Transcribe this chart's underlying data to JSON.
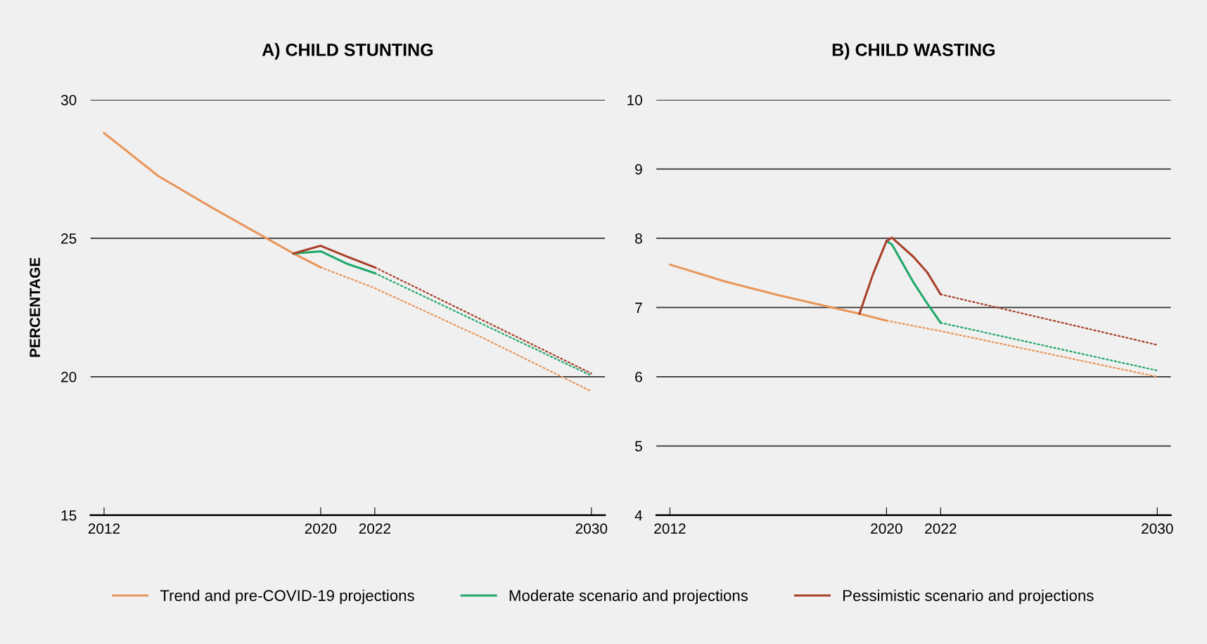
{
  "chart_data": [
    {
      "type": "line",
      "title": "A) CHILD STUNTING",
      "ylabel": "PERCENTAGE",
      "xlim": [
        2011.5,
        2030.5
      ],
      "xticks": [
        2012,
        2020,
        2022,
        2030
      ],
      "ylim": [
        15,
        30
      ],
      "yticks": [
        15,
        20,
        25,
        30
      ],
      "grid": "y",
      "legend": "bottom",
      "series": [
        {
          "name": "Trend and pre-COVID-19 projections",
          "color": "#e8965a",
          "line_style": "solid",
          "x": [
            2012,
            2014,
            2016,
            2018,
            2019,
            2020
          ],
          "values": [
            28.8,
            27.25,
            26.1,
            25.0,
            24.45,
            23.95
          ]
        },
        {
          "color": "#e8965a",
          "line_style": "dotted",
          "x": [
            2020,
            2022,
            2026,
            2030
          ],
          "values": [
            23.95,
            23.2,
            21.4,
            19.47
          ]
        },
        {
          "name": "Moderate scenario and projections",
          "color": "#1fa86a",
          "line_style": "solid",
          "x": [
            2019,
            2020,
            2021,
            2022
          ],
          "values": [
            24.45,
            24.53,
            24.07,
            23.74
          ]
        },
        {
          "color": "#1fa86a",
          "line_style": "dotted",
          "x": [
            2022,
            2030
          ],
          "values": [
            23.74,
            20.04
          ]
        },
        {
          "name": "Pessimistic scenario and projections",
          "color": "#a8402a",
          "line_style": "solid",
          "x": [
            2019,
            2020,
            2021,
            2022
          ],
          "values": [
            24.45,
            24.73,
            24.33,
            23.95
          ]
        },
        {
          "color": "#a8402a",
          "line_style": "dotted",
          "x": [
            2022,
            2030
          ],
          "values": [
            23.95,
            20.12
          ]
        }
      ]
    },
    {
      "type": "line",
      "title": "B) CHILD WASTING",
      "xlim": [
        2011.5,
        2030.5
      ],
      "xticks": [
        2012,
        2020,
        2022,
        2030
      ],
      "ylim": [
        4,
        10
      ],
      "yticks": [
        4,
        5,
        6,
        7,
        8,
        9,
        10
      ],
      "grid": "y",
      "series": [
        {
          "color": "#e8965a",
          "line_style": "solid",
          "x": [
            2012,
            2014,
            2016,
            2018,
            2019,
            2020
          ],
          "values": [
            7.62,
            7.38,
            7.18,
            7.0,
            6.91,
            6.81
          ]
        },
        {
          "color": "#e8965a",
          "line_style": "dotted",
          "x": [
            2020,
            2022,
            2030
          ],
          "values": [
            6.81,
            6.66,
            6.0
          ]
        },
        {
          "color": "#1fa86a",
          "line_style": "solid",
          "x": [
            2020,
            2020.2,
            2021,
            2021.5,
            2022
          ],
          "values": [
            7.96,
            7.91,
            7.36,
            7.06,
            6.78
          ]
        },
        {
          "color": "#1fa86a",
          "line_style": "dotted",
          "x": [
            2022,
            2030
          ],
          "values": [
            6.78,
            6.09
          ]
        },
        {
          "color": "#a8402a",
          "line_style": "solid",
          "x": [
            2019,
            2019.5,
            2020,
            2020.2,
            2021,
            2021.5,
            2022
          ],
          "values": [
            6.91,
            7.48,
            7.96,
            8.01,
            7.73,
            7.51,
            7.19
          ]
        },
        {
          "color": "#a8402a",
          "line_style": "dotted",
          "x": [
            2022,
            2030
          ],
          "values": [
            7.19,
            6.46
          ]
        }
      ]
    }
  ]
}
